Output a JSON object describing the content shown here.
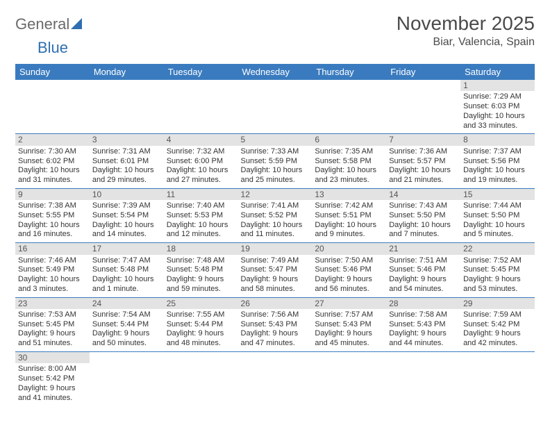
{
  "brand": {
    "first": "General",
    "second": "Blue"
  },
  "title": "November 2025",
  "location": "Biar, Valencia, Spain",
  "colors": {
    "header_bg": "#3a7bbf",
    "header_text": "#ffffff",
    "daynum_bg": "#e3e3e3",
    "divider": "#3a7bbf",
    "brand_gray": "#6a6a6a",
    "brand_blue": "#2f6fb0"
  },
  "weekdays": [
    "Sunday",
    "Monday",
    "Tuesday",
    "Wednesday",
    "Thursday",
    "Friday",
    "Saturday"
  ],
  "weeks": [
    [
      null,
      null,
      null,
      null,
      null,
      null,
      {
        "n": "1",
        "sr": "7:29 AM",
        "ss": "6:03 PM",
        "dl": "10 hours and 33 minutes."
      }
    ],
    [
      {
        "n": "2",
        "sr": "7:30 AM",
        "ss": "6:02 PM",
        "dl": "10 hours and 31 minutes."
      },
      {
        "n": "3",
        "sr": "7:31 AM",
        "ss": "6:01 PM",
        "dl": "10 hours and 29 minutes."
      },
      {
        "n": "4",
        "sr": "7:32 AM",
        "ss": "6:00 PM",
        "dl": "10 hours and 27 minutes."
      },
      {
        "n": "5",
        "sr": "7:33 AM",
        "ss": "5:59 PM",
        "dl": "10 hours and 25 minutes."
      },
      {
        "n": "6",
        "sr": "7:35 AM",
        "ss": "5:58 PM",
        "dl": "10 hours and 23 minutes."
      },
      {
        "n": "7",
        "sr": "7:36 AM",
        "ss": "5:57 PM",
        "dl": "10 hours and 21 minutes."
      },
      {
        "n": "8",
        "sr": "7:37 AM",
        "ss": "5:56 PM",
        "dl": "10 hours and 19 minutes."
      }
    ],
    [
      {
        "n": "9",
        "sr": "7:38 AM",
        "ss": "5:55 PM",
        "dl": "10 hours and 16 minutes."
      },
      {
        "n": "10",
        "sr": "7:39 AM",
        "ss": "5:54 PM",
        "dl": "10 hours and 14 minutes."
      },
      {
        "n": "11",
        "sr": "7:40 AM",
        "ss": "5:53 PM",
        "dl": "10 hours and 12 minutes."
      },
      {
        "n": "12",
        "sr": "7:41 AM",
        "ss": "5:52 PM",
        "dl": "10 hours and 11 minutes."
      },
      {
        "n": "13",
        "sr": "7:42 AM",
        "ss": "5:51 PM",
        "dl": "10 hours and 9 minutes."
      },
      {
        "n": "14",
        "sr": "7:43 AM",
        "ss": "5:50 PM",
        "dl": "10 hours and 7 minutes."
      },
      {
        "n": "15",
        "sr": "7:44 AM",
        "ss": "5:50 PM",
        "dl": "10 hours and 5 minutes."
      }
    ],
    [
      {
        "n": "16",
        "sr": "7:46 AM",
        "ss": "5:49 PM",
        "dl": "10 hours and 3 minutes."
      },
      {
        "n": "17",
        "sr": "7:47 AM",
        "ss": "5:48 PM",
        "dl": "10 hours and 1 minute."
      },
      {
        "n": "18",
        "sr": "7:48 AM",
        "ss": "5:48 PM",
        "dl": "9 hours and 59 minutes."
      },
      {
        "n": "19",
        "sr": "7:49 AM",
        "ss": "5:47 PM",
        "dl": "9 hours and 58 minutes."
      },
      {
        "n": "20",
        "sr": "7:50 AM",
        "ss": "5:46 PM",
        "dl": "9 hours and 56 minutes."
      },
      {
        "n": "21",
        "sr": "7:51 AM",
        "ss": "5:46 PM",
        "dl": "9 hours and 54 minutes."
      },
      {
        "n": "22",
        "sr": "7:52 AM",
        "ss": "5:45 PM",
        "dl": "9 hours and 53 minutes."
      }
    ],
    [
      {
        "n": "23",
        "sr": "7:53 AM",
        "ss": "5:45 PM",
        "dl": "9 hours and 51 minutes."
      },
      {
        "n": "24",
        "sr": "7:54 AM",
        "ss": "5:44 PM",
        "dl": "9 hours and 50 minutes."
      },
      {
        "n": "25",
        "sr": "7:55 AM",
        "ss": "5:44 PM",
        "dl": "9 hours and 48 minutes."
      },
      {
        "n": "26",
        "sr": "7:56 AM",
        "ss": "5:43 PM",
        "dl": "9 hours and 47 minutes."
      },
      {
        "n": "27",
        "sr": "7:57 AM",
        "ss": "5:43 PM",
        "dl": "9 hours and 45 minutes."
      },
      {
        "n": "28",
        "sr": "7:58 AM",
        "ss": "5:43 PM",
        "dl": "9 hours and 44 minutes."
      },
      {
        "n": "29",
        "sr": "7:59 AM",
        "ss": "5:42 PM",
        "dl": "9 hours and 42 minutes."
      }
    ],
    [
      {
        "n": "30",
        "sr": "8:00 AM",
        "ss": "5:42 PM",
        "dl": "9 hours and 41 minutes."
      },
      null,
      null,
      null,
      null,
      null,
      null
    ]
  ],
  "labels": {
    "sunrise": "Sunrise:",
    "sunset": "Sunset:",
    "daylight": "Daylight:"
  }
}
